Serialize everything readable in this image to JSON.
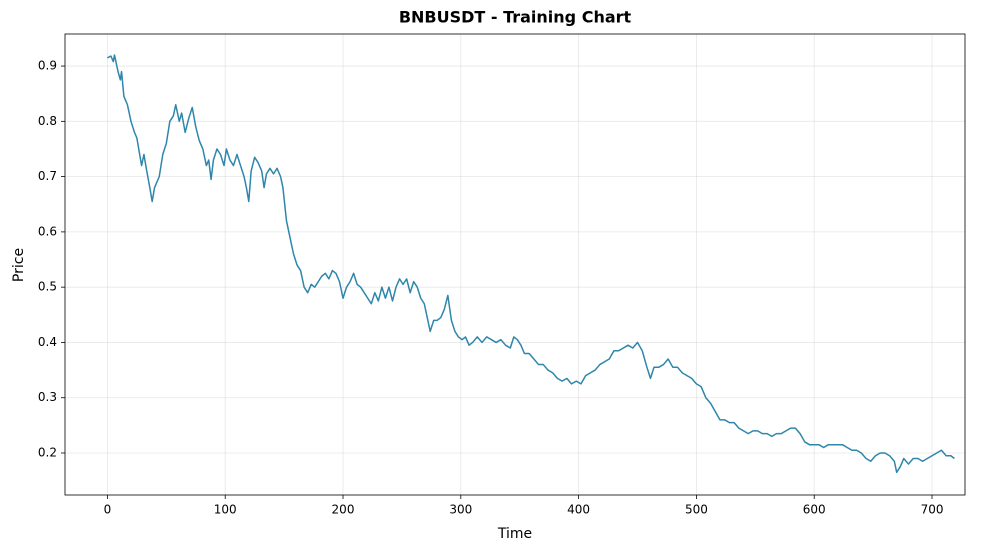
{
  "chart_data": {
    "type": "line",
    "title": "BNBUSDT - Training Chart",
    "x_label": "Time",
    "y_label": "Price",
    "xlim": [
      -36,
      728
    ],
    "ylim": [
      0.124,
      0.958
    ],
    "xticks": [
      0,
      100,
      200,
      300,
      400,
      500,
      600,
      700
    ],
    "yticks": [
      0.2,
      0.3,
      0.4,
      0.5,
      0.6,
      0.7,
      0.8,
      0.9
    ],
    "grid": true,
    "x": [
      0,
      3,
      5,
      6,
      9,
      11,
      12,
      14,
      17,
      20,
      23,
      25,
      27,
      29,
      31,
      33,
      36,
      38,
      40,
      44,
      47,
      50,
      53,
      56,
      58,
      61,
      63,
      66,
      69,
      72,
      75,
      78,
      81,
      84,
      86,
      88,
      90,
      93,
      96,
      99,
      101,
      104,
      107,
      110,
      113,
      116,
      118,
      120,
      122,
      125,
      128,
      131,
      133,
      135,
      138,
      141,
      144,
      147,
      149,
      152,
      155,
      158,
      161,
      164,
      167,
      170,
      173,
      176,
      179,
      182,
      185,
      188,
      191,
      194,
      197,
      200,
      203,
      206,
      209,
      212,
      215,
      218,
      221,
      224,
      227,
      230,
      233,
      236,
      239,
      242,
      245,
      248,
      251,
      254,
      257,
      260,
      263,
      266,
      269,
      272,
      274,
      277,
      280,
      283,
      286,
      289,
      292,
      295,
      298,
      301,
      304,
      307,
      310,
      314,
      318,
      322,
      326,
      330,
      334,
      338,
      342,
      345,
      348,
      351,
      354,
      358,
      362,
      366,
      370,
      374,
      378,
      382,
      386,
      390,
      394,
      398,
      402,
      406,
      410,
      414,
      418,
      422,
      426,
      430,
      434,
      438,
      442,
      446,
      450,
      454,
      458,
      461,
      464,
      468,
      472,
      476,
      480,
      484,
      488,
      492,
      496,
      500,
      504,
      508,
      512,
      516,
      520,
      524,
      528,
      532,
      536,
      540,
      544,
      548,
      552,
      556,
      560,
      564,
      568,
      572,
      576,
      580,
      584,
      588,
      592,
      596,
      600,
      604,
      608,
      612,
      616,
      620,
      624,
      628,
      632,
      636,
      640,
      644,
      648,
      652,
      656,
      660,
      664,
      668,
      670,
      673,
      676,
      680,
      684,
      688,
      692,
      696,
      700,
      704,
      708,
      712,
      716,
      719
    ],
    "series": [
      {
        "name": "BNBUSDT",
        "color": "#2e86ab",
        "values": [
          0.915,
          0.918,
          0.908,
          0.92,
          0.89,
          0.875,
          0.89,
          0.845,
          0.83,
          0.8,
          0.78,
          0.77,
          0.745,
          0.72,
          0.74,
          0.715,
          0.68,
          0.655,
          0.68,
          0.7,
          0.74,
          0.76,
          0.8,
          0.81,
          0.83,
          0.8,
          0.815,
          0.78,
          0.805,
          0.825,
          0.79,
          0.765,
          0.75,
          0.72,
          0.73,
          0.695,
          0.73,
          0.75,
          0.74,
          0.72,
          0.75,
          0.73,
          0.72,
          0.74,
          0.72,
          0.7,
          0.68,
          0.655,
          0.71,
          0.735,
          0.725,
          0.71,
          0.68,
          0.705,
          0.715,
          0.705,
          0.715,
          0.7,
          0.68,
          0.62,
          0.59,
          0.56,
          0.54,
          0.53,
          0.5,
          0.49,
          0.505,
          0.5,
          0.51,
          0.52,
          0.525,
          0.515,
          0.53,
          0.525,
          0.51,
          0.48,
          0.5,
          0.51,
          0.525,
          0.505,
          0.5,
          0.49,
          0.48,
          0.47,
          0.49,
          0.475,
          0.5,
          0.48,
          0.5,
          0.475,
          0.5,
          0.515,
          0.505,
          0.515,
          0.49,
          0.51,
          0.5,
          0.48,
          0.47,
          0.44,
          0.42,
          0.44,
          0.44,
          0.445,
          0.46,
          0.485,
          0.44,
          0.42,
          0.41,
          0.405,
          0.41,
          0.395,
          0.4,
          0.41,
          0.4,
          0.41,
          0.405,
          0.4,
          0.405,
          0.395,
          0.39,
          0.41,
          0.405,
          0.395,
          0.38,
          0.38,
          0.37,
          0.36,
          0.36,
          0.35,
          0.345,
          0.335,
          0.33,
          0.335,
          0.325,
          0.33,
          0.325,
          0.34,
          0.345,
          0.35,
          0.36,
          0.365,
          0.37,
          0.385,
          0.385,
          0.39,
          0.395,
          0.39,
          0.4,
          0.385,
          0.355,
          0.335,
          0.355,
          0.355,
          0.36,
          0.37,
          0.355,
          0.355,
          0.345,
          0.34,
          0.335,
          0.325,
          0.32,
          0.3,
          0.29,
          0.275,
          0.26,
          0.26,
          0.255,
          0.255,
          0.245,
          0.24,
          0.235,
          0.24,
          0.24,
          0.235,
          0.235,
          0.23,
          0.235,
          0.235,
          0.24,
          0.245,
          0.245,
          0.235,
          0.22,
          0.215,
          0.215,
          0.215,
          0.21,
          0.215,
          0.215,
          0.215,
          0.215,
          0.21,
          0.205,
          0.205,
          0.2,
          0.19,
          0.185,
          0.195,
          0.2,
          0.2,
          0.195,
          0.185,
          0.165,
          0.175,
          0.19,
          0.18,
          0.19,
          0.19,
          0.185,
          0.19,
          0.195,
          0.2,
          0.205,
          0.195,
          0.195,
          0.19
        ]
      }
    ]
  }
}
